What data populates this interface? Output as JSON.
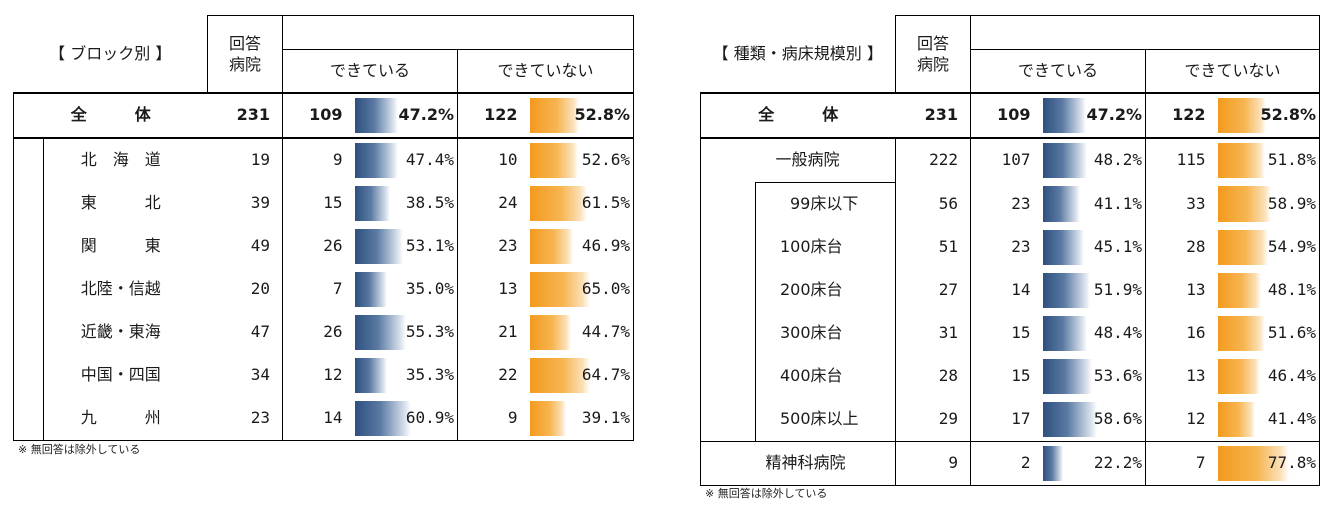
{
  "left": {
    "title": "【 ブロック別 】",
    "headers": {
      "hospitals": "回答\n病院",
      "can": "できている",
      "cannot": "できていない"
    },
    "total": {
      "label": "全　　　体",
      "n": "231",
      "can_n": "109",
      "can_pct": 47.2,
      "cannot_n": "122",
      "cannot_pct": 52.8
    },
    "rows": [
      {
        "label": "北　海　道",
        "n": "19",
        "can_n": "9",
        "can_pct": 47.4,
        "cannot_n": "10",
        "cannot_pct": 52.6
      },
      {
        "label": "東　　　北",
        "n": "39",
        "can_n": "15",
        "can_pct": 38.5,
        "cannot_n": "24",
        "cannot_pct": 61.5
      },
      {
        "label": "関　　　東",
        "n": "49",
        "can_n": "26",
        "can_pct": 53.1,
        "cannot_n": "23",
        "cannot_pct": 46.9
      },
      {
        "label": "北陸・信越",
        "n": "20",
        "can_n": "7",
        "can_pct": 35.0,
        "cannot_n": "13",
        "cannot_pct": 65.0
      },
      {
        "label": "近畿・東海",
        "n": "47",
        "can_n": "26",
        "can_pct": 55.3,
        "cannot_n": "21",
        "cannot_pct": 44.7
      },
      {
        "label": "中国・四国",
        "n": "34",
        "can_n": "12",
        "can_pct": 35.3,
        "cannot_n": "22",
        "cannot_pct": 64.7
      },
      {
        "label": "九　　　州",
        "n": "23",
        "can_n": "14",
        "can_pct": 60.9,
        "cannot_n": "9",
        "cannot_pct": 39.1
      }
    ],
    "note": "※ 無回答は除外している"
  },
  "right": {
    "title": "【 種類・病床規模別 】",
    "headers": {
      "hospitals": "回答\n病院",
      "can": "できている",
      "cannot": "できていない"
    },
    "total": {
      "label": "全　　　体",
      "n": "231",
      "can_n": "109",
      "can_pct": 47.2,
      "cannot_n": "122",
      "cannot_pct": 52.8
    },
    "general": {
      "label": "一般病院",
      "n": "222",
      "can_n": "107",
      "can_pct": 48.2,
      "cannot_n": "115",
      "cannot_pct": 51.8
    },
    "beds": [
      {
        "label": "99床以下",
        "n": "56",
        "can_n": "23",
        "can_pct": 41.1,
        "cannot_n": "33",
        "cannot_pct": 58.9
      },
      {
        "label": "100床台",
        "n": "51",
        "can_n": "23",
        "can_pct": 45.1,
        "cannot_n": "28",
        "cannot_pct": 54.9
      },
      {
        "label": "200床台",
        "n": "27",
        "can_n": "14",
        "can_pct": 51.9,
        "cannot_n": "13",
        "cannot_pct": 48.1
      },
      {
        "label": "300床台",
        "n": "31",
        "can_n": "15",
        "can_pct": 48.4,
        "cannot_n": "16",
        "cannot_pct": 51.6
      },
      {
        "label": "400床台",
        "n": "28",
        "can_n": "15",
        "can_pct": 53.6,
        "cannot_n": "13",
        "cannot_pct": 46.4
      },
      {
        "label": "500床以上",
        "n": "29",
        "can_n": "17",
        "can_pct": 58.6,
        "cannot_n": "12",
        "cannot_pct": 41.4
      }
    ],
    "psych": {
      "label": "精神科病院",
      "n": "9",
      "can_n": "2",
      "can_pct": 22.2,
      "cannot_n": "7",
      "cannot_pct": 77.8
    },
    "note": "※ 無回答は除外している"
  },
  "colors": {
    "can_bar": "#2f4f7f",
    "cannot_bar": "#f39a1e"
  },
  "chart_data": [
    {
      "type": "table",
      "title": "【 ブロック別 】",
      "columns": [
        "回答病院",
        "できている",
        "できていない"
      ],
      "categories": [
        "全体",
        "北海道",
        "東北",
        "関東",
        "北陸・信越",
        "近畿・東海",
        "中国・四国",
        "九州"
      ],
      "series": [
        {
          "name": "回答病院",
          "values": [
            231,
            19,
            39,
            49,
            20,
            47,
            34,
            23
          ]
        },
        {
          "name": "できている",
          "values": [
            109,
            9,
            15,
            26,
            7,
            26,
            12,
            14
          ],
          "pct": [
            47.2,
            47.4,
            38.5,
            53.1,
            35.0,
            55.3,
            35.3,
            60.9
          ]
        },
        {
          "name": "できていない",
          "values": [
            122,
            10,
            24,
            23,
            13,
            21,
            22,
            9
          ],
          "pct": [
            52.8,
            52.6,
            61.5,
            46.9,
            65.0,
            44.7,
            64.7,
            39.1
          ]
        }
      ]
    },
    {
      "type": "table",
      "title": "【 種類・病床規模別 】",
      "columns": [
        "回答病院",
        "できている",
        "できていない"
      ],
      "categories": [
        "全体",
        "一般病院",
        "99床以下",
        "100床台",
        "200床台",
        "300床台",
        "400床台",
        "500床以上",
        "精神科病院"
      ],
      "series": [
        {
          "name": "回答病院",
          "values": [
            231,
            222,
            56,
            51,
            27,
            31,
            28,
            29,
            9
          ]
        },
        {
          "name": "できている",
          "values": [
            109,
            107,
            23,
            23,
            14,
            15,
            15,
            17,
            2
          ],
          "pct": [
            47.2,
            48.2,
            41.1,
            45.1,
            51.9,
            48.4,
            53.6,
            58.6,
            22.2
          ]
        },
        {
          "name": "できていない",
          "values": [
            122,
            115,
            33,
            28,
            13,
            16,
            13,
            12,
            7
          ],
          "pct": [
            52.8,
            51.8,
            58.9,
            54.9,
            48.1,
            51.6,
            46.4,
            41.4,
            77.8
          ]
        }
      ]
    }
  ]
}
